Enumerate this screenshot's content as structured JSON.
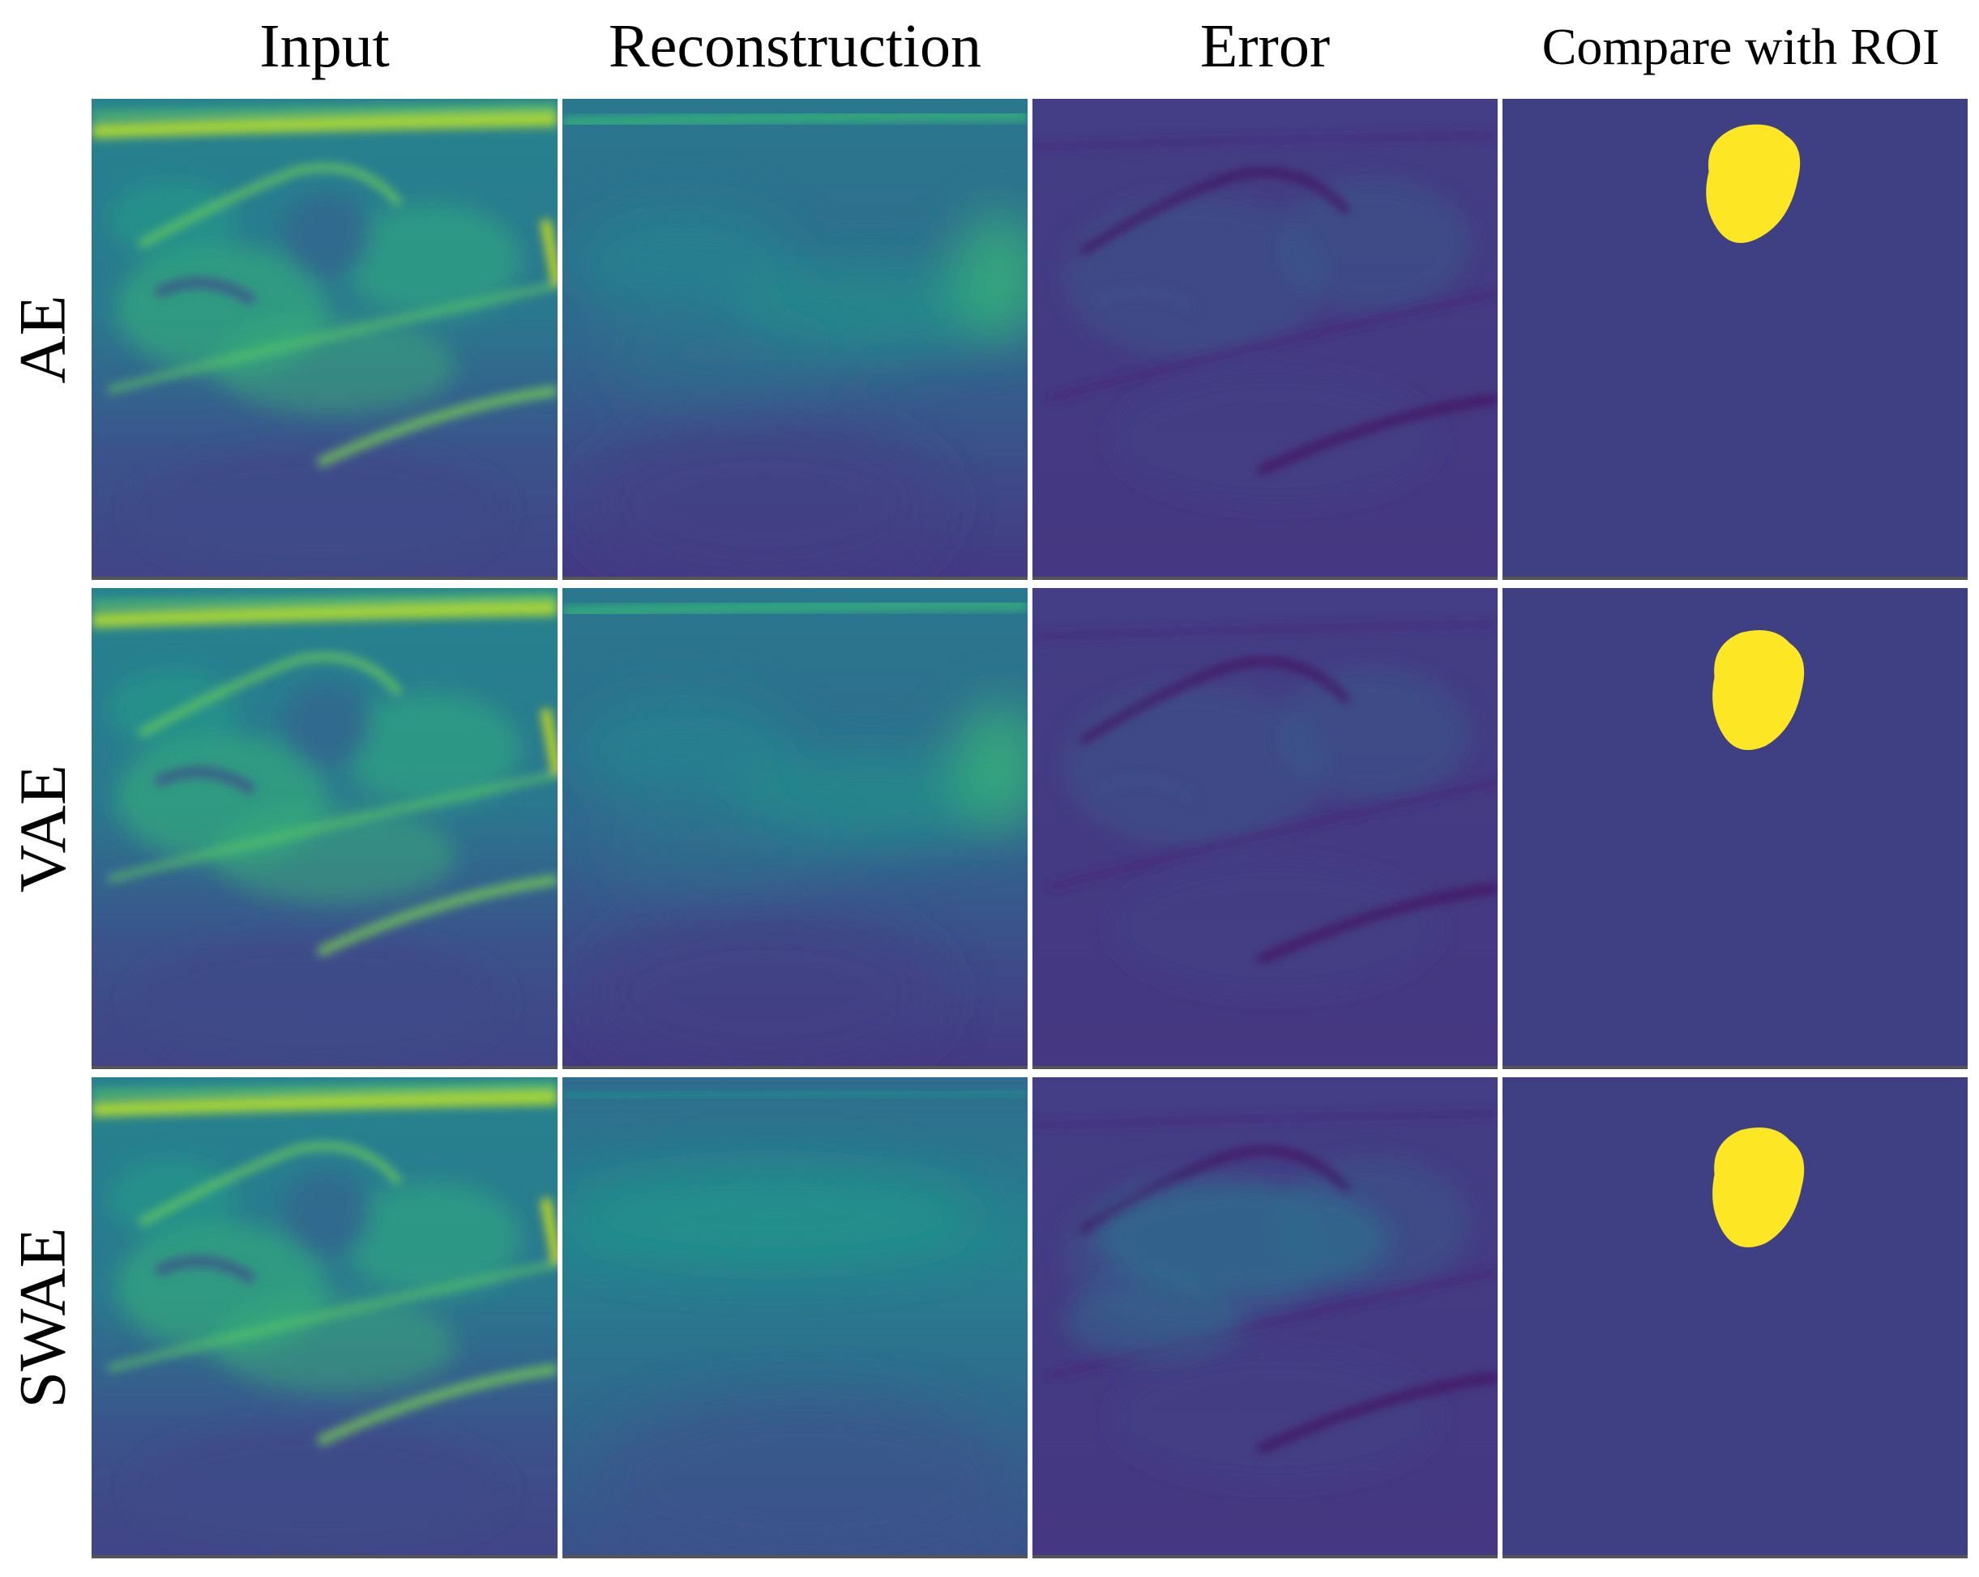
{
  "columns": [
    {
      "label": "Input"
    },
    {
      "label": "Reconstruction"
    },
    {
      "label": "Error"
    },
    {
      "label": "Compare with ROI"
    }
  ],
  "rows": [
    {
      "label": "AE"
    },
    {
      "label": "VAE"
    },
    {
      "label": "SWAE"
    }
  ],
  "colors": {
    "viridis_dark": "#440154",
    "viridis_blue": "#3b528b",
    "viridis_teal": "#21918c",
    "viridis_green": "#5ec962",
    "viridis_yellow": "#fde725",
    "roi_background": "#3f3f84"
  }
}
